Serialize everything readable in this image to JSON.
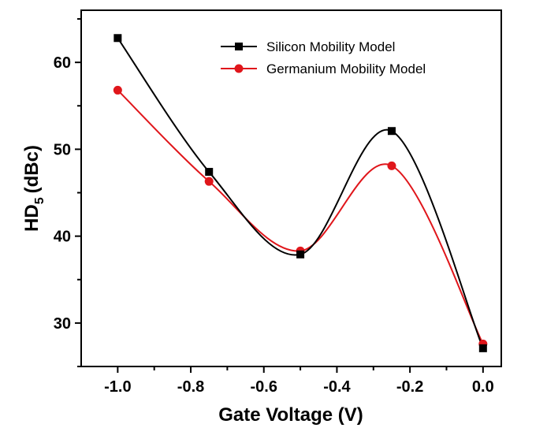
{
  "chart_data": {
    "type": "line",
    "title": "",
    "xlabel": "Gate Voltage (V)",
    "ylabel": {
      "main": "HD",
      "sub": "5",
      "unit": "(dBc)"
    },
    "xlim": [
      -1.1,
      0.05
    ],
    "ylim": [
      25,
      66
    ],
    "xticks": [
      -1.0,
      -0.8,
      -0.6,
      -0.4,
      -0.2,
      0.0
    ],
    "xtick_labels": [
      "-1.0",
      "-0.8",
      "-0.6",
      "-0.4",
      "-0.2",
      "0.0"
    ],
    "yticks": [
      30,
      40,
      50,
      60
    ],
    "ytick_labels": [
      "30",
      "40",
      "50",
      "60"
    ],
    "grid": false,
    "legend_position": "top-right",
    "series": [
      {
        "name": "Silicon Mobility Model",
        "color": "#000000",
        "marker": "square",
        "x": [
          -1.0,
          -0.75,
          -0.5,
          -0.25,
          0.0
        ],
        "y": [
          62.8,
          47.4,
          37.9,
          52.1,
          27.1
        ]
      },
      {
        "name": "Germanium Mobility Model",
        "color": "#e0161b",
        "marker": "circle",
        "x": [
          -1.0,
          -0.75,
          -0.5,
          -0.25,
          0.0
        ],
        "y": [
          56.8,
          46.3,
          38.3,
          48.1,
          27.6
        ]
      }
    ]
  }
}
